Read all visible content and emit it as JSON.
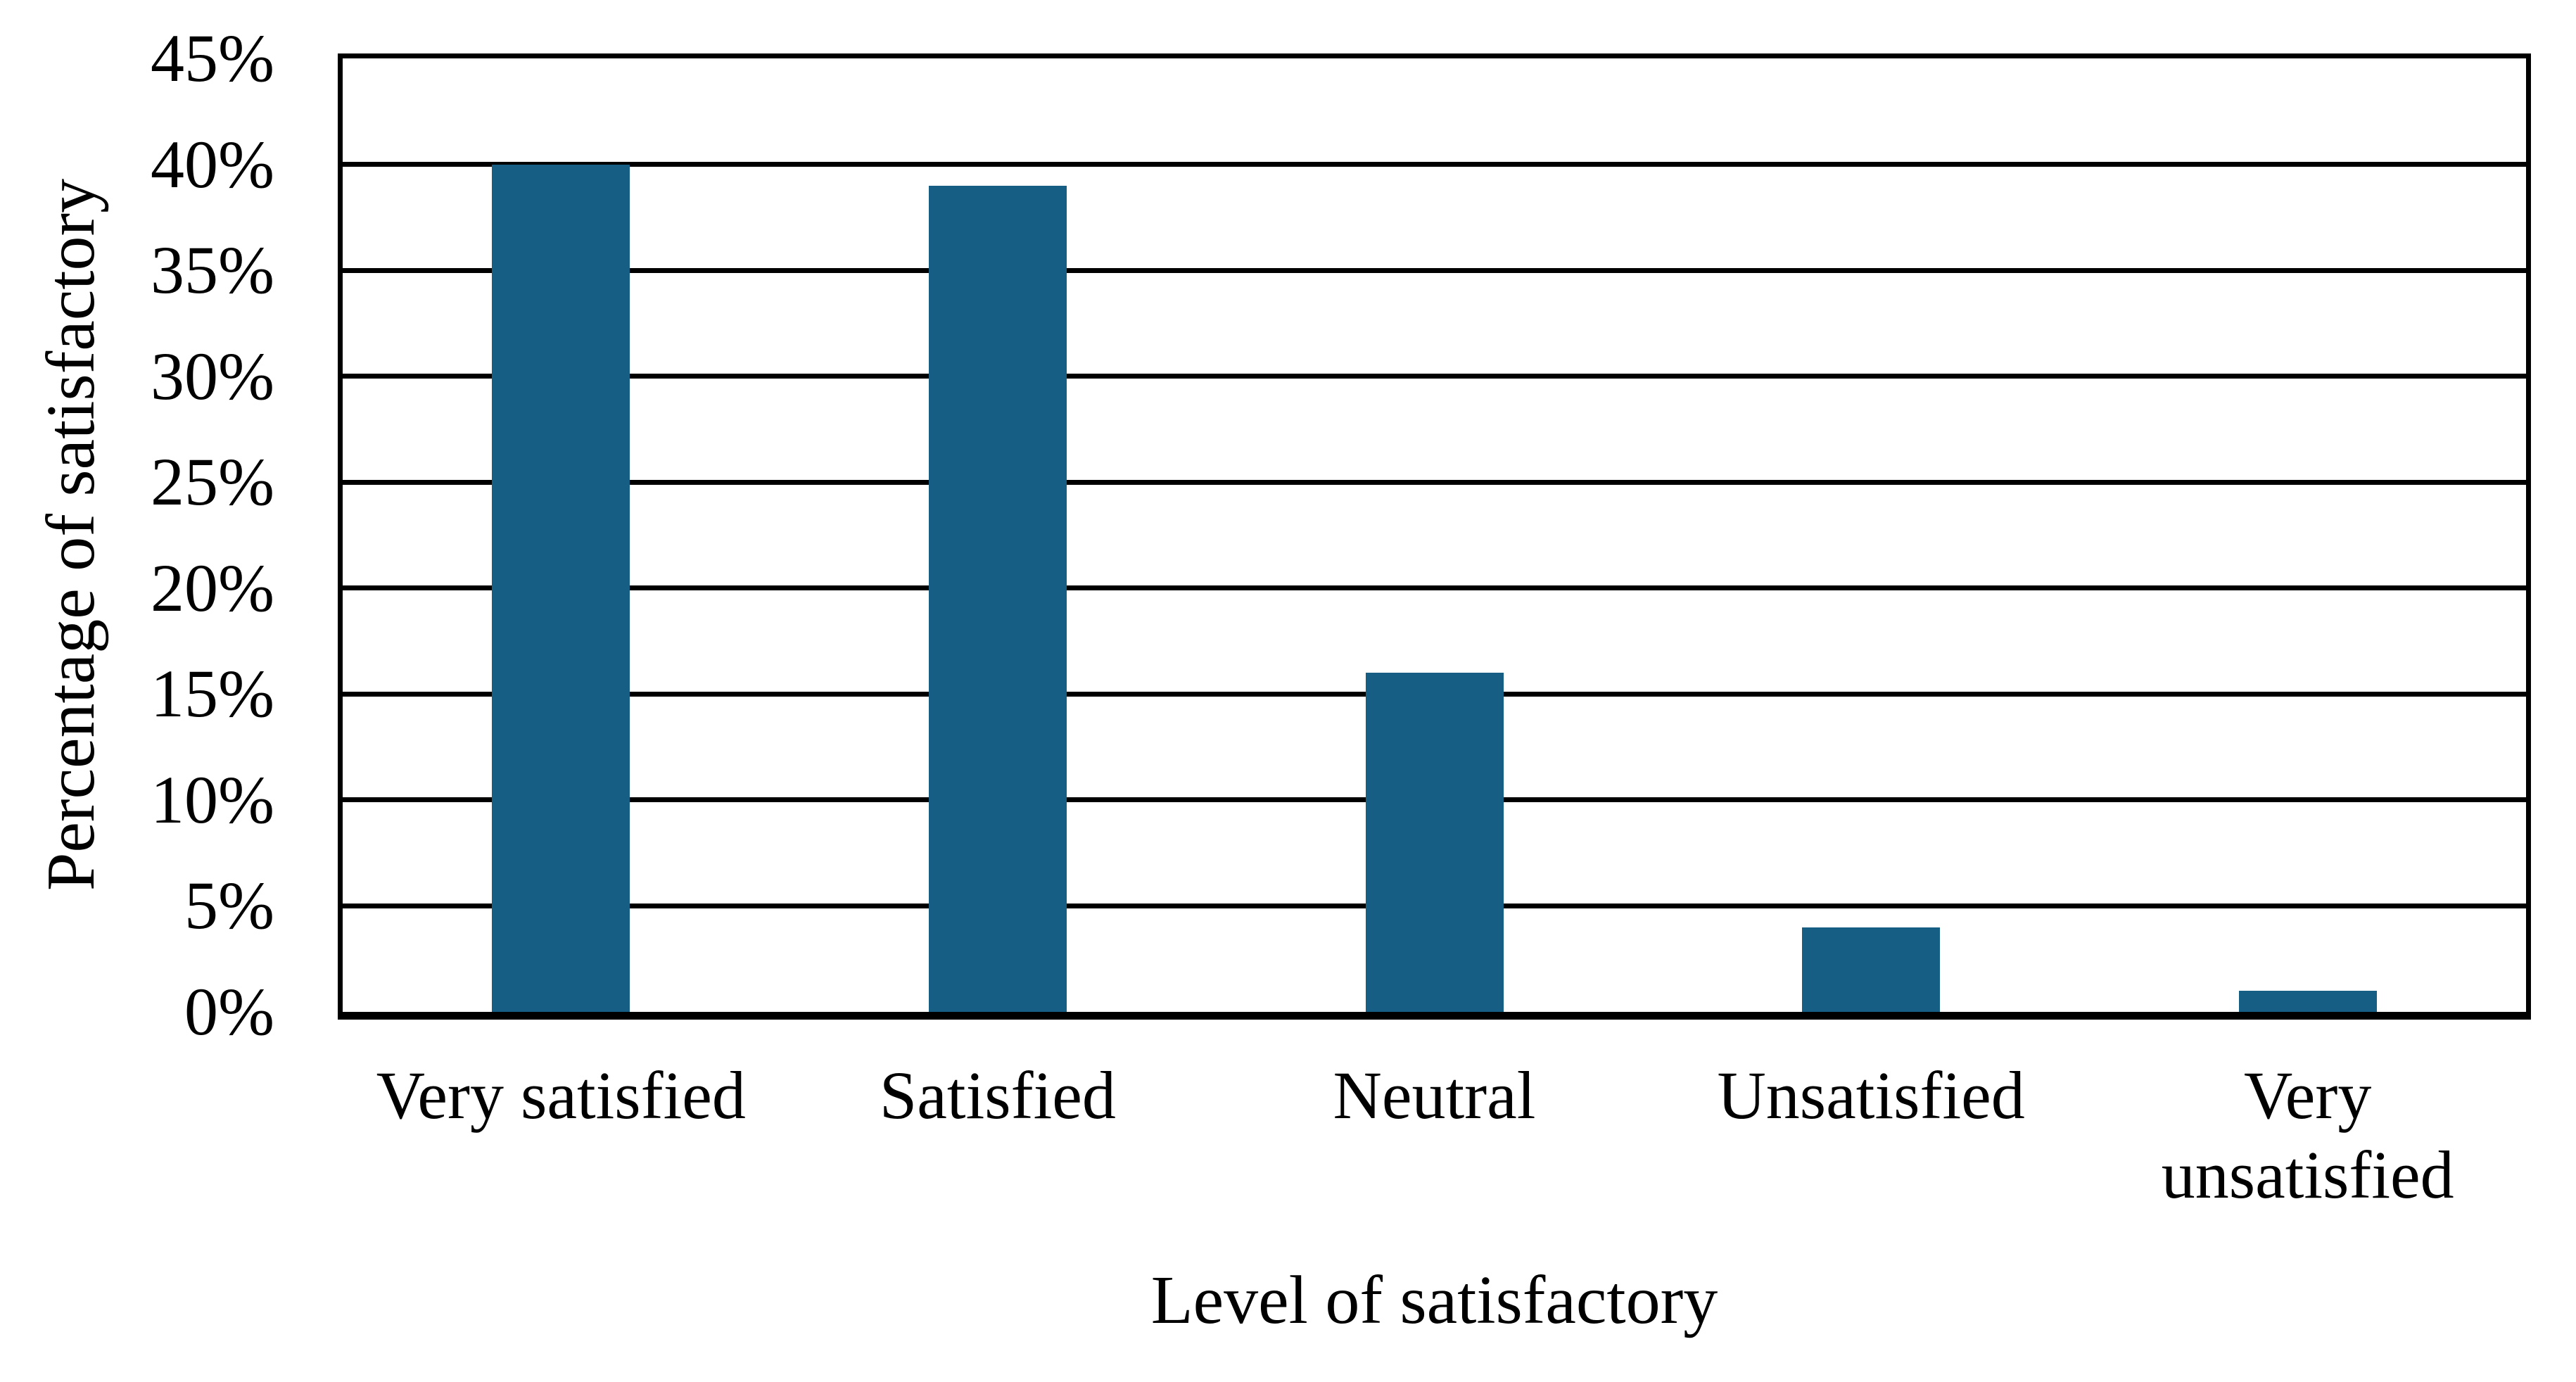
{
  "chart_data": {
    "type": "bar",
    "title": "",
    "categories": [
      "Very satisfied",
      "Satisfied",
      "Neutral",
      "Unsatisfied",
      "Very unsatisfied"
    ],
    "values": [
      40,
      39,
      16,
      4,
      1
    ],
    "value_unit": "%",
    "xlabel": "Level of satisfactory",
    "ylabel": "Percentage of satisfactory",
    "ylim": [
      0,
      45
    ],
    "ytick_step": 5,
    "ytick_labels": [
      "0%",
      "5%",
      "10%",
      "15%",
      "20%",
      "25%",
      "30%",
      "35%",
      "40%",
      "45%"
    ],
    "grid": "horizontal-black-lines",
    "legend": "none",
    "bar_color": "#165E84",
    "axis_color": "#000000",
    "text_color": "#000000",
    "background_color": "#FFFFFF"
  }
}
